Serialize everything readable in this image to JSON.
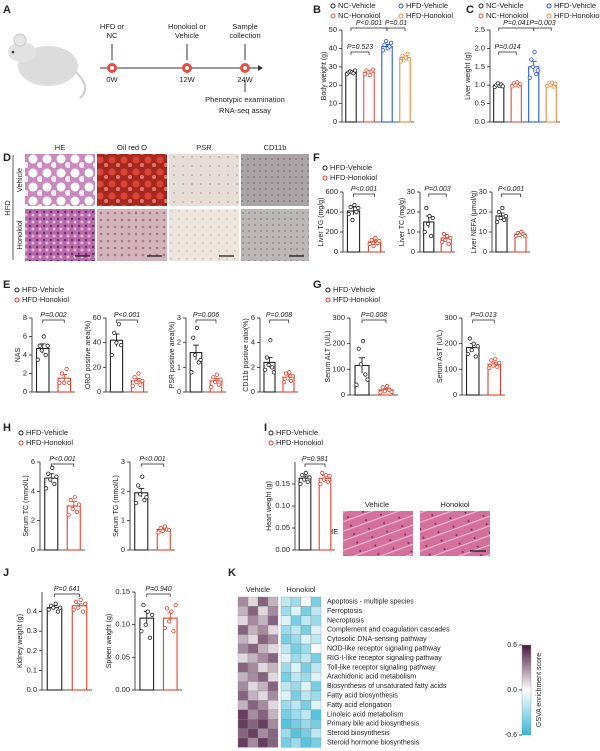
{
  "panel_labels": [
    "A",
    "B",
    "C",
    "D",
    "E",
    "F",
    "G",
    "H",
    "I",
    "J",
    "K"
  ],
  "timeline": {
    "events": [
      {
        "label_lines": [
          "HFD or",
          "NC"
        ],
        "time": "0W"
      },
      {
        "label_lines": [
          "Honokiol or",
          "Vehicle"
        ],
        "time": "12W"
      },
      {
        "label_lines": [
          "Sample",
          "collection"
        ],
        "time": "24W"
      }
    ],
    "outcomes": [
      "Phenotypic examination",
      "RNA-seq assay"
    ]
  },
  "liver_histology": {
    "stains": [
      "HE",
      "Oil red O",
      "PSR",
      "CD11b"
    ],
    "diet": "HFD",
    "groups": [
      "Vehicle",
      "Honokiol"
    ]
  },
  "heart_histology": {
    "stain": "HE",
    "groups": [
      "Vehicle",
      "Honokiol"
    ]
  },
  "chart_data": [
    {
      "type": "bar",
      "ylabel": "Body weight (g)",
      "ylim": [
        0,
        50
      ],
      "yticks": [
        0,
        10,
        20,
        30,
        40,
        50
      ],
      "annotations": [
        "P<0.001",
        "P=0.01",
        "P=0.523"
      ],
      "series": [
        {
          "name": "NC-Vehicle",
          "color": "#222222",
          "values": [
            27
          ],
          "errors": [
            0.8
          ],
          "points": [
            26,
            27,
            27.5,
            27,
            26.5,
            28
          ]
        },
        {
          "name": "NC-Honokiol",
          "color": "#e8513a",
          "values": [
            27
          ],
          "errors": [
            0.9
          ],
          "points": [
            26,
            28,
            27,
            25.5,
            27.5,
            28.5
          ]
        },
        {
          "name": "HFD-Vehicle",
          "color": "#2a5bd7",
          "values": [
            41
          ],
          "errors": [
            1.2
          ],
          "points": [
            39,
            42,
            44,
            40,
            41,
            43
          ]
        },
        {
          "name": "HFD-Honokiol",
          "color": "#f08a3c",
          "values": [
            35
          ],
          "errors": [
            0.9
          ],
          "points": [
            33,
            36,
            34,
            35,
            37,
            34
          ]
        }
      ]
    },
    {
      "type": "bar",
      "ylabel": "Liver weight (g)",
      "ylim": [
        0,
        2.5
      ],
      "yticks": [
        {
          "value": 0,
          "label": "0.0"
        },
        0.5,
        {
          "value": 1,
          "label": "1.0"
        },
        1.5,
        {
          "value": 2,
          "label": "2.0"
        },
        2.5
      ],
      "annotations": [
        "P=0.041",
        "P=0.003",
        "P=0.014"
      ],
      "series": [
        {
          "name": "NC-Vehicle",
          "color": "#222222",
          "values": [
            1.0
          ],
          "errors": [
            0.04
          ],
          "points": [
            0.95,
            1.0,
            1.05,
            0.98,
            1.02,
            0.97
          ]
        },
        {
          "name": "NC-Honokiol",
          "color": "#e8513a",
          "values": [
            1.02
          ],
          "errors": [
            0.04
          ],
          "points": [
            0.97,
            1.05,
            1.0,
            1.08,
            0.99,
            1.03
          ]
        },
        {
          "name": "HFD-Vehicle",
          "color": "#2a5bd7",
          "values": [
            1.5
          ],
          "errors": [
            0.15
          ],
          "points": [
            1.2,
            1.7,
            1.5,
            1.9,
            1.3,
            1.4
          ]
        },
        {
          "name": "HFD-Honokiol",
          "color": "#f08a3c",
          "values": [
            1.02
          ],
          "errors": [
            0.04
          ],
          "points": [
            0.98,
            1.05,
            1.0,
            1.07,
            0.96,
            1.04
          ]
        }
      ]
    },
    {
      "type": "bar",
      "ylabel": "Liver TG (mg/g)",
      "ylim": [
        0,
        600
      ],
      "yticks": [
        0,
        200,
        400,
        600
      ],
      "annotations": [
        "P<0.001"
      ],
      "series": [
        {
          "name": "HFD-Vehicle",
          "color": "#222222",
          "values": [
            410
          ],
          "errors": [
            40
          ],
          "points": [
            380,
            450,
            320,
            470,
            400,
            440
          ]
        },
        {
          "name": "HFD-Honokiol",
          "color": "#e8402a",
          "values": [
            100
          ],
          "errors": [
            18
          ],
          "points": [
            80,
            120,
            60,
            140,
            90,
            110
          ]
        }
      ]
    },
    {
      "type": "bar",
      "ylabel": "Liver TC (mg/g)",
      "ylim": [
        0,
        30
      ],
      "yticks": [
        0,
        10,
        20,
        30
      ],
      "annotations": [
        "P=0.003"
      ],
      "series": [
        {
          "color": "#222222",
          "values": [
            15
          ],
          "errors": [
            3
          ],
          "points": [
            10,
            22,
            14,
            18,
            8,
            17
          ]
        },
        {
          "color": "#e8402a",
          "values": [
            7
          ],
          "errors": [
            1
          ],
          "points": [
            5,
            9,
            6,
            8,
            4,
            7
          ]
        }
      ]
    },
    {
      "type": "bar",
      "ylabel": "Liver NEFA (μmol/g)",
      "ylim": [
        0,
        30
      ],
      "yticks": [
        0,
        10,
        20,
        30
      ],
      "annotations": [
        "P<0.001"
      ],
      "series": [
        {
          "color": "#222222",
          "values": [
            18
          ],
          "errors": [
            1.5
          ],
          "points": [
            15,
            20,
            17,
            22,
            16,
            18
          ]
        },
        {
          "color": "#e8402a",
          "values": [
            9
          ],
          "errors": [
            0.5
          ],
          "points": [
            8,
            9.5,
            8.5,
            10,
            9,
            8
          ]
        }
      ]
    },
    {
      "type": "bar",
      "ylabel": "NAS",
      "ylim": [
        0,
        8
      ],
      "yticks": [
        0,
        2,
        4,
        6,
        8
      ],
      "annotations": [
        "P=0.002"
      ],
      "series": [
        {
          "name": "HFD-Vehicle",
          "color": "#222222",
          "values": [
            4.7
          ],
          "errors": [
            0.5
          ],
          "points": [
            3.5,
            5,
            4.5,
            6,
            4,
            5
          ]
        },
        {
          "name": "HFD-Honokiol",
          "color": "#e8402a",
          "values": [
            1.5
          ],
          "errors": [
            0.4
          ],
          "points": [
            1,
            2,
            1,
            2.5,
            1
          ]
        }
      ]
    },
    {
      "type": "bar",
      "ylabel": "ORO positive area(%)",
      "ylim": [
        0,
        60
      ],
      "yticks": [
        0,
        20,
        40,
        60
      ],
      "annotations": [
        "P<0.001"
      ],
      "series": [
        {
          "color": "#222222",
          "values": [
            42
          ],
          "errors": [
            5
          ],
          "points": [
            30,
            48,
            40,
            55,
            38
          ]
        },
        {
          "color": "#e8402a",
          "values": [
            9
          ],
          "errors": [
            2
          ],
          "points": [
            5,
            12,
            8,
            15,
            6,
            9
          ]
        }
      ]
    },
    {
      "type": "bar",
      "ylabel": "PSR positive area(%)",
      "ylim": [
        0,
        3
      ],
      "yticks": [
        0,
        1,
        2,
        3
      ],
      "annotations": [
        "P=0.006"
      ],
      "series": [
        {
          "color": "#222222",
          "values": [
            1.6
          ],
          "errors": [
            0.3
          ],
          "points": [
            0.8,
            2.2,
            1.5,
            2.6,
            1.2,
            1.3
          ]
        },
        {
          "color": "#e8402a",
          "values": [
            0.45
          ],
          "errors": [
            0.1
          ],
          "points": [
            0.2,
            0.6,
            0.4,
            0.7,
            0.3,
            0.5
          ]
        }
      ]
    },
    {
      "type": "bar",
      "ylabel": "CD11b positive ratio(%)",
      "ylim": [
        0,
        6
      ],
      "yticks": [
        0,
        2,
        4,
        6
      ],
      "annotations": [
        "P=0.008"
      ],
      "series": [
        {
          "color": "#222222",
          "values": [
            2.4
          ],
          "errors": [
            0.4
          ],
          "points": [
            1.8,
            2.8,
            2.2,
            4.2,
            2,
            1.6
          ]
        },
        {
          "color": "#e8402a",
          "values": [
            1.2
          ],
          "errors": [
            0.2
          ],
          "points": [
            0.8,
            1.5,
            1.1,
            1.6,
            0.9,
            1.3
          ]
        }
      ]
    },
    {
      "type": "bar",
      "ylabel": "Serum ALT (U/L)",
      "ylim": [
        0,
        300
      ],
      "yticks": [
        0,
        100,
        200,
        300
      ],
      "annotations": [
        "P=0.008"
      ],
      "series": [
        {
          "name": "HFD-Vehicle",
          "color": "#222222",
          "values": [
            115
          ],
          "errors": [
            30
          ],
          "points": [
            40,
            180,
            120,
            210,
            80,
            60
          ]
        },
        {
          "name": "HFD-Honokiol",
          "color": "#e8402a",
          "values": [
            20
          ],
          "errors": [
            5
          ],
          "points": [
            10,
            30,
            15,
            35,
            20,
            12
          ]
        }
      ]
    },
    {
      "type": "bar",
      "ylabel": "Serum AST (U/L)",
      "ylim": [
        0,
        300
      ],
      "yticks": [
        0,
        100,
        200,
        300
      ],
      "annotations": [
        "P=0.013"
      ],
      "series": [
        {
          "color": "#222222",
          "values": [
            185
          ],
          "errors": [
            15
          ],
          "points": [
            160,
            220,
            175,
            200,
            150,
            190
          ]
        },
        {
          "color": "#e8402a",
          "values": [
            120
          ],
          "errors": [
            8
          ],
          "points": [
            105,
            135,
            115,
            140,
            110,
            125
          ]
        }
      ]
    },
    {
      "type": "bar",
      "ylabel": "Serum TC (mmol/L)",
      "ylim": [
        0,
        6
      ],
      "yticks": [
        0,
        2,
        4,
        6
      ],
      "annotations": [
        "P<0.001"
      ],
      "series": [
        {
          "name": "HFD-Vehicle",
          "color": "#222222",
          "values": [
            4.9
          ],
          "errors": [
            0.3
          ],
          "points": [
            4.2,
            5.2,
            4.8,
            5.6,
            4.5,
            5
          ]
        },
        {
          "name": "HFD-Honokiol",
          "color": "#e8402a",
          "values": [
            3.0
          ],
          "errors": [
            0.3
          ],
          "points": [
            2.4,
            3.4,
            2.8,
            3.6,
            2.6,
            3.1
          ]
        }
      ]
    },
    {
      "type": "bar",
      "ylabel": "Serum TG (mmol/L)",
      "ylim": [
        0,
        3
      ],
      "yticks": [
        0,
        1,
        2,
        3
      ],
      "annotations": [
        "P<0.001"
      ],
      "series": [
        {
          "color": "#222222",
          "values": [
            1.95
          ],
          "errors": [
            0.15
          ],
          "points": [
            1.6,
            2.2,
            1.9,
            2.5,
            1.7,
            1.8
          ]
        },
        {
          "color": "#e8402a",
          "values": [
            0.7
          ],
          "errors": [
            0.05
          ],
          "points": [
            0.6,
            0.75,
            0.65,
            0.8,
            0.7,
            0.68
          ]
        }
      ]
    },
    {
      "type": "bar",
      "ylabel": "Heart weight (g)",
      "ylim": [
        0,
        0.2
      ],
      "yticks": [
        {
          "value": 0,
          "label": "0.00"
        },
        0.05,
        {
          "value": 0.1,
          "label": "0.10"
        },
        0.15
      ],
      "annotations": [
        "P=0.981"
      ],
      "series": [
        {
          "name": "HFD-Vehicle",
          "color": "#222222",
          "values": [
            0.163
          ],
          "errors": [
            0.005
          ],
          "points": [
            0.15,
            0.17,
            0.16,
            0.175,
            0.155,
            0.165
          ]
        },
        {
          "name": "HFD-Honokiol",
          "color": "#e8402a",
          "values": [
            0.163
          ],
          "errors": [
            0.006
          ],
          "points": [
            0.15,
            0.175,
            0.16,
            0.17,
            0.155,
            0.168
          ]
        }
      ]
    },
    {
      "type": "bar",
      "ylabel": "Kidney weight (g)",
      "ylim": [
        0,
        0.5
      ],
      "yticks": [
        {
          "value": 0,
          "label": "0.0"
        },
        0.1,
        0.2,
        0.3,
        0.4
      ],
      "annotations": [
        "P=0.641"
      ],
      "series": [
        {
          "color": "#222222",
          "values": [
            0.42
          ],
          "errors": [
            0.01
          ],
          "points": [
            0.41,
            0.43,
            0.42,
            0.44,
            0.4,
            0.42
          ]
        },
        {
          "color": "#e8402a",
          "values": [
            0.43
          ],
          "errors": [
            0.01
          ],
          "points": [
            0.41,
            0.45,
            0.42,
            0.46,
            0.4,
            0.44
          ]
        }
      ]
    },
    {
      "type": "bar",
      "ylabel": "Spleen weight (g)",
      "ylim": [
        0,
        0.15
      ],
      "yticks": [
        {
          "value": 0,
          "label": "0.00"
        },
        0.05,
        {
          "value": 0.1,
          "label": "0.10"
        },
        0.15
      ],
      "annotations": [
        "P=0.940"
      ],
      "series": [
        {
          "color": "#222222",
          "values": [
            0.11
          ],
          "errors": [
            0.01
          ],
          "points": [
            0.09,
            0.13,
            0.1,
            0.12,
            0.08,
            0.115
          ]
        },
        {
          "color": "#e8402a",
          "values": [
            0.11
          ],
          "errors": [
            0.008
          ],
          "points": [
            0.095,
            0.125,
            0.105,
            0.12,
            0.09,
            0.13
          ]
        }
      ]
    }
  ],
  "heatmap": {
    "groups": [
      "Vehicle",
      "Honokiol"
    ],
    "pathways": [
      "Apoptosis - multiple species",
      "Ferroptosis",
      "Necroptosis",
      "Complement and coagulation cascades",
      "Cytosolic DNA-sensing pathway",
      "NOD-like receptor signaling pathway",
      "RIG-I-like receptor signaling pathway",
      "Toll-like receptor signaling pathway",
      "Arachidonic acid metabolism",
      "Biosynthesis of unsaturated fatty acids",
      "Fatty acid biosynthesis",
      "Fatty acid elongation",
      "Linoleic acid metabolism",
      "Primary bile acid biosynthesis",
      "Steroid biosynthesis",
      "Steroid hormone biosynthesis"
    ],
    "values": [
      [
        0.3,
        0.1,
        0.4,
        0.2,
        -0.2,
        -0.3,
        0.0,
        -0.4
      ],
      [
        0.2,
        0.4,
        0.1,
        0.3,
        -0.3,
        -0.1,
        -0.4,
        -0.2
      ],
      [
        0.1,
        0.3,
        0.2,
        0.4,
        -0.1,
        -0.4,
        -0.2,
        -0.3
      ],
      [
        0.4,
        0.2,
        0.3,
        0.1,
        -0.3,
        -0.2,
        -0.4,
        -0.1
      ],
      [
        0.2,
        0.1,
        0.4,
        0.3,
        -0.4,
        -0.3,
        -0.1,
        -0.2
      ],
      [
        0.3,
        0.4,
        0.2,
        0.1,
        -0.2,
        -0.4,
        -0.3,
        0.0
      ],
      [
        0.1,
        0.2,
        0.3,
        0.4,
        -0.1,
        -0.3,
        -0.2,
        -0.4
      ],
      [
        0.4,
        0.3,
        0.1,
        0.2,
        -0.3,
        -0.1,
        -0.4,
        -0.2
      ],
      [
        0.2,
        0.3,
        0.4,
        0.1,
        -0.4,
        -0.2,
        -0.3,
        -0.1
      ],
      [
        0.3,
        0.1,
        0.2,
        0.4,
        -0.2,
        -0.3,
        -0.1,
        -0.4
      ],
      [
        0.4,
        0.2,
        0.1,
        0.3,
        -0.1,
        -0.4,
        -0.2,
        -0.3
      ],
      [
        0.2,
        0.4,
        0.3,
        0.1,
        -0.3,
        -0.2,
        -0.4,
        -0.1
      ],
      [
        0.5,
        0.3,
        0.4,
        0.2,
        -0.4,
        -0.3,
        -0.2,
        -0.5
      ],
      [
        0.5,
        0.4,
        0.5,
        0.3,
        -0.5,
        -0.4,
        -0.3,
        -0.4
      ],
      [
        0.4,
        0.5,
        0.3,
        0.4,
        -0.3,
        -0.5,
        -0.4,
        -0.2
      ],
      [
        0.5,
        0.3,
        0.5,
        0.4,
        -0.4,
        -0.3,
        -0.5,
        -0.4
      ]
    ],
    "colors": [
      "#38b6d6",
      "#ffffff",
      "#4a1740"
    ],
    "colorbar": {
      "label": "GSVA enrichment score",
      "lim": [
        -0.6,
        0.6
      ],
      "ticks": [
        0.6,
        {
          "value": 0,
          "label": "0.0"
        },
        -0.6
      ]
    }
  }
}
